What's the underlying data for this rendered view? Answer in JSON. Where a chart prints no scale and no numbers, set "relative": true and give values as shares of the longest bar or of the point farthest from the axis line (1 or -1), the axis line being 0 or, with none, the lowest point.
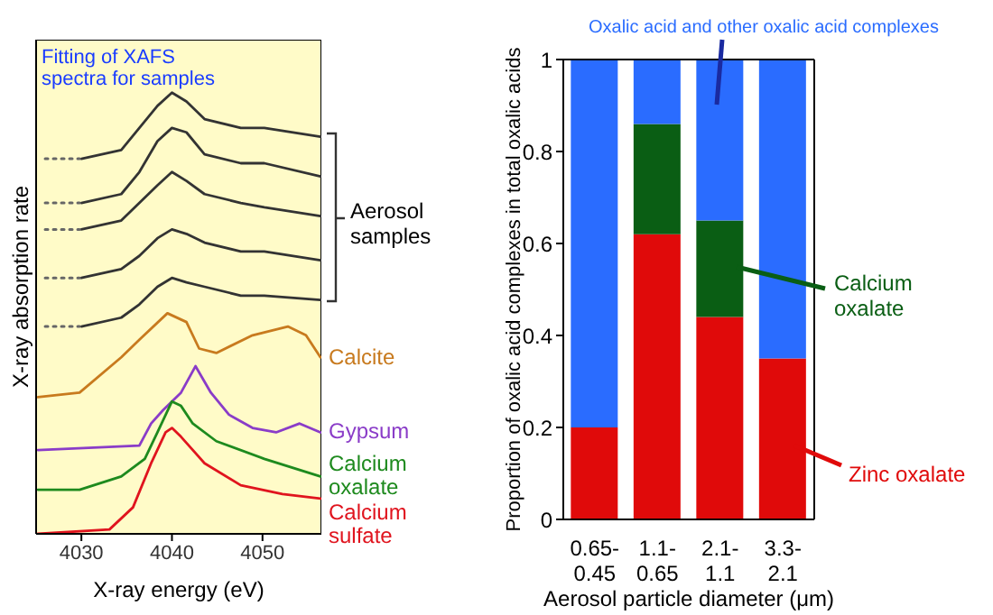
{
  "chart_data": [
    {
      "type": "line",
      "xlabel": "X-ray energy (eV)",
      "ylabel": "X-ray absorption rate",
      "relative": true,
      "xlim": [
        4025,
        4056.5
      ],
      "xticks": [
        4030,
        4040,
        4050
      ],
      "annotations": [
        "Fitting of XAFS spectra for samples",
        "Aerosol samples"
      ],
      "series": [
        {
          "color": "#333333",
          "x": [
            4030,
            4034.4,
            4036.4,
            4038.4,
            4040,
            4041.6,
            4043.6,
            4047.6,
            4050.2,
            4056.4
          ],
          "values": [
            0.85,
            0.87,
            0.92,
            0.97,
            1.0,
            0.98,
            0.94,
            0.92,
            0.92,
            0.9
          ]
        },
        {
          "color": "#333333",
          "x": [
            4030,
            4034.4,
            4036.4,
            4038.4,
            4040,
            4041.6,
            4043.6,
            4047.6,
            4050.2,
            4056.4
          ],
          "values": [
            0.75,
            0.77,
            0.82,
            0.89,
            0.92,
            0.91,
            0.86,
            0.84,
            0.84,
            0.81
          ]
        },
        {
          "color": "#333333",
          "x": [
            4030,
            4034.4,
            4036.4,
            4038.4,
            4040,
            4041.6,
            4043.6,
            4047.6,
            4050.2,
            4056.4
          ],
          "values": [
            0.69,
            0.71,
            0.75,
            0.79,
            0.82,
            0.8,
            0.77,
            0.75,
            0.74,
            0.72
          ]
        },
        {
          "color": "#333333",
          "x": [
            4030,
            4034.4,
            4036.4,
            4038.4,
            4040,
            4041.6,
            4043.6,
            4047.6,
            4050.2,
            4056.4
          ],
          "values": [
            0.58,
            0.6,
            0.63,
            0.67,
            0.69,
            0.68,
            0.66,
            0.64,
            0.64,
            0.62
          ]
        },
        {
          "color": "#333333",
          "x": [
            4030,
            4034.4,
            4036.4,
            4038.4,
            4040,
            4041.6,
            4043.6,
            4047.6,
            4050.2,
            4056.4
          ],
          "values": [
            0.47,
            0.49,
            0.52,
            0.56,
            0.58,
            0.57,
            0.56,
            0.54,
            0.54,
            0.53
          ]
        },
        {
          "color": "#666666",
          "line_style": "dotted",
          "x": [
            4026,
            4029.8
          ],
          "values": [
            0.85,
            0.85
          ]
        },
        {
          "color": "#666666",
          "line_style": "dotted",
          "x": [
            4026,
            4029.8
          ],
          "values": [
            0.75,
            0.75
          ]
        },
        {
          "color": "#666666",
          "line_style": "dotted",
          "x": [
            4026,
            4029.8
          ],
          "values": [
            0.69,
            0.69
          ]
        },
        {
          "color": "#666666",
          "line_style": "dotted",
          "x": [
            4026,
            4029.8
          ],
          "values": [
            0.58,
            0.58
          ]
        },
        {
          "color": "#666666",
          "line_style": "dotted",
          "x": [
            4026,
            4029.8
          ],
          "values": [
            0.47,
            0.47
          ]
        },
        {
          "name": "Calcite",
          "color": "#c87a1e",
          "x": [
            4025.2,
            4029.8,
            4034.4,
            4036.4,
            4039.5,
            4041.6,
            4043.0,
            4044.9,
            4048.9,
            4052.8,
            4054.8,
            4056.4
          ],
          "values": [
            0.31,
            0.32,
            0.4,
            0.44,
            0.5,
            0.48,
            0.42,
            0.41,
            0.45,
            0.47,
            0.45,
            0.4
          ]
        },
        {
          "name": "Gypsum",
          "color": "#8a3cc8",
          "x": [
            4025.2,
            4036.4,
            4037.7,
            4039.0,
            4041.0,
            4042.6,
            4044.3,
            4046.3,
            4048.9,
            4051.5,
            4054.1,
            4056.4
          ],
          "values": [
            0.19,
            0.2,
            0.25,
            0.28,
            0.32,
            0.38,
            0.32,
            0.27,
            0.24,
            0.23,
            0.25,
            0.23
          ]
        },
        {
          "name": "Calcium oxalate",
          "color": "#1e8a1e",
          "x": [
            4025.2,
            4029.8,
            4034.4,
            4037.0,
            4038.4,
            4040,
            4041.0,
            4042.3,
            4044.9,
            4050.2,
            4056.4
          ],
          "values": [
            0.1,
            0.1,
            0.13,
            0.17,
            0.23,
            0.3,
            0.29,
            0.25,
            0.21,
            0.17,
            0.13
          ]
        },
        {
          "name": "Calcium sulfate",
          "color": "#e0141e",
          "x": [
            4025.2,
            4033.1,
            4035.7,
            4037.7,
            4039.3,
            4040,
            4041.0,
            4043.6,
            4047.6,
            4052.2,
            4056.4
          ],
          "values": [
            0.0,
            0.01,
            0.06,
            0.16,
            0.23,
            0.24,
            0.22,
            0.16,
            0.11,
            0.09,
            0.08
          ]
        }
      ]
    },
    {
      "type": "bar",
      "stacked": true,
      "categories": [
        "0.65-0.45",
        "1.1-0.65",
        "2.1-1.1",
        "3.3-2.1"
      ],
      "xlabel": "Aerosol particle diameter (μm)",
      "ylabel": "Proportion of oxalic acid complexes in total oxalic acids",
      "ylim": [
        0,
        1
      ],
      "yticks": [
        0,
        0.2,
        0.4,
        0.6,
        0.8,
        1
      ],
      "series": [
        {
          "name": "Zinc oxalate",
          "color": "#e00a0a",
          "values": [
            0.2,
            0.62,
            0.44,
            0.35
          ]
        },
        {
          "name": "Calcium oxalate",
          "color": "#0a5e14",
          "values": [
            0,
            0.24,
            0.21,
            0
          ]
        },
        {
          "name": "Oxalic acid and other oxalic acid complexes",
          "color": "#2a6cff",
          "values": [
            0.8,
            0.14,
            0.35,
            0.65
          ]
        }
      ]
    }
  ]
}
